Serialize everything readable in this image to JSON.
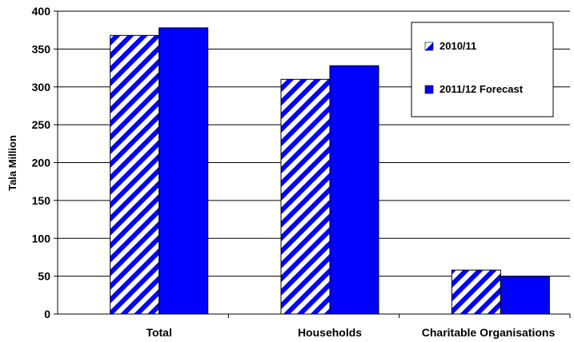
{
  "chart_data": {
    "type": "bar",
    "title": "",
    "xlabel": "",
    "ylabel": "Tala Million",
    "ylim": [
      0,
      400
    ],
    "yticks": [
      0,
      50,
      100,
      150,
      200,
      250,
      300,
      350,
      400
    ],
    "categories": [
      "Total",
      "Households",
      "Charitable Organisations"
    ],
    "series": [
      {
        "name": "2010/11",
        "values": [
          368,
          310,
          58
        ],
        "color": "#0000FF",
        "pattern": "diagonal-stripes"
      },
      {
        "name": "2011/12 Forecast",
        "values": [
          378,
          328,
          50
        ],
        "color": "#0000FF",
        "pattern": "solid"
      }
    ],
    "grid": true,
    "legend_position": "top-right"
  }
}
